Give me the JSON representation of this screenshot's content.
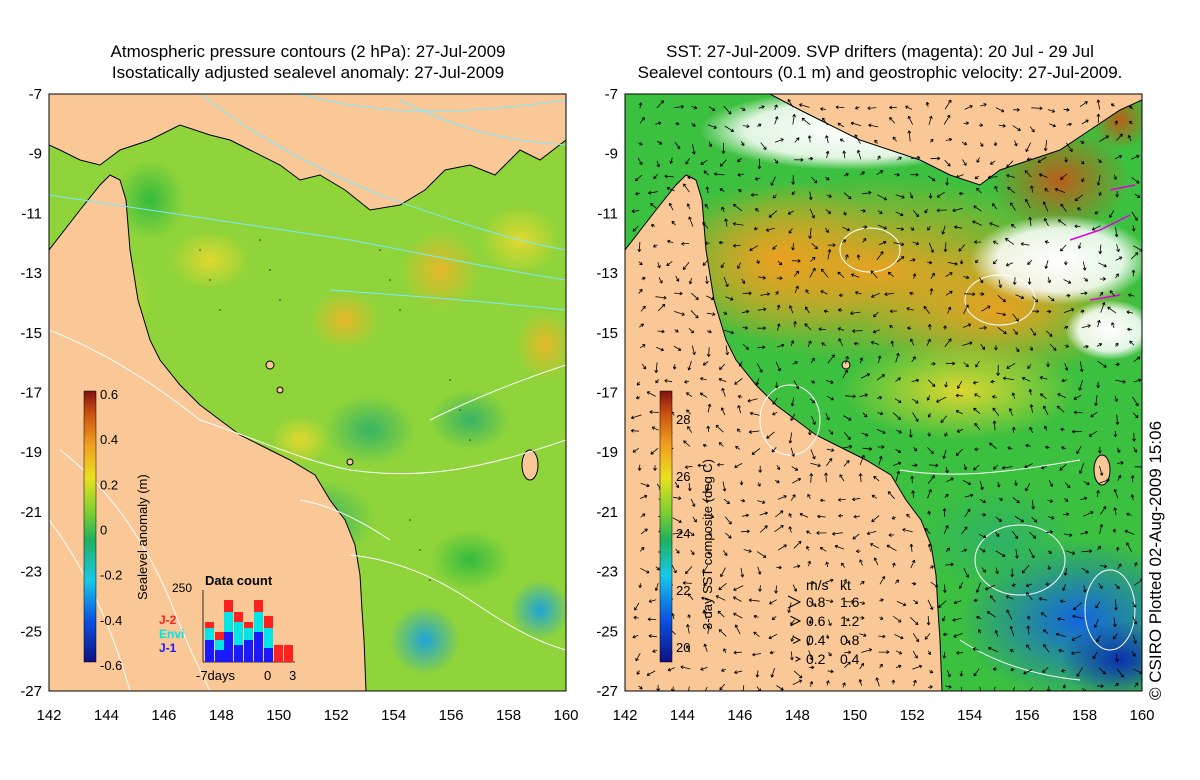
{
  "left_panel": {
    "title_line1": "Atmospheric pressure contours (2 hPa): 27-Jul-2009",
    "title_line2": "Isostatically adjusted sealevel anomaly: 27-Jul-2009",
    "colorbar": {
      "label": "Sealevel anomaly (m)",
      "ticks": [
        "0.6",
        "0.4",
        "0.2",
        "0",
        "-0.2",
        "-0.4",
        "-0.6"
      ]
    },
    "data_count": {
      "title": "Data count",
      "ymax_label": "250",
      "missions": [
        "J-2",
        "Envi",
        "J-1"
      ],
      "mission_colors": [
        "#ff2020",
        "#00e5e5",
        "#1a1aff"
      ],
      "x_labels": [
        "-7days",
        "0",
        "3"
      ]
    }
  },
  "right_panel": {
    "title_line1": "SST: 27-Jul-2009. SVP drifters (magenta): 20 Jul - 29 Jul",
    "title_line2": "Sealevel contours (0.1 m) and geostrophic velocity: 27-Jul-2009.",
    "colorbar": {
      "label": "3-day SST composite (deg C)",
      "ticks": [
        "28",
        "26",
        "24",
        "22",
        "20"
      ]
    },
    "velocity_legend": {
      "header_ms": "m/s",
      "header_kt": "kt",
      "rows": [
        {
          "ms": "0.8",
          "kt": "1.6"
        },
        {
          "ms": "0.6",
          "kt": "1.2"
        },
        {
          "ms": "0.4",
          "kt": "0.8"
        },
        {
          "ms": "0.2",
          "kt": "0.4"
        }
      ]
    },
    "credit": "© CSIRO Plotted 02-Aug-2009 15:06"
  },
  "axes": {
    "lon_labels": [
      "142",
      "144",
      "146",
      "148",
      "150",
      "152",
      "154",
      "156",
      "158",
      "160"
    ],
    "lat_labels": [
      "-7",
      "-9",
      "-11",
      "-13",
      "-15",
      "-17",
      "-19",
      "-21",
      "-23",
      "-25",
      "-27"
    ]
  },
  "colors": {
    "land": "#f9c896",
    "sla_field": "#8ed43a",
    "sst_warm": "#f2a524",
    "cloud": "#ffffff"
  }
}
